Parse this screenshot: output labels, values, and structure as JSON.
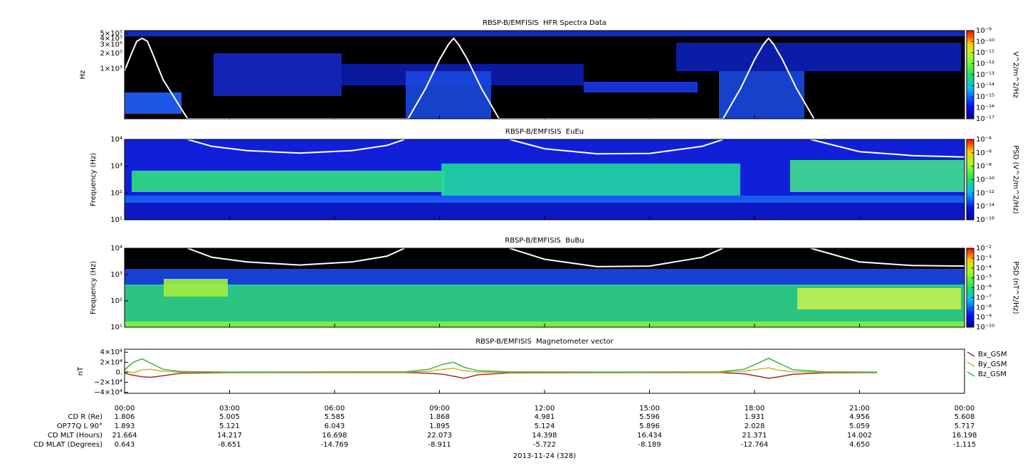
{
  "chart_data": [
    {
      "type": "spectrogram",
      "title": "RBSP-B/EMFISIS  HFR Spectra Data",
      "ylabel": "Hz",
      "log": true,
      "ylim": [
        10000,
        570000
      ],
      "yticks": [
        {
          "value": 500000,
          "label": "5×10⁵"
        },
        {
          "value": 400000,
          "label": "4×10⁵"
        },
        {
          "value": 300000,
          "label": "3×10⁵"
        },
        {
          "value": 200000,
          "label": "2×10⁵"
        },
        {
          "value": 100000,
          "label": "1×10⁵"
        }
      ],
      "colorbar": {
        "label": "V^2/m^2/Hz",
        "lim": [
          1e-17,
          1e-09
        ],
        "ticks": [
          {
            "value": 1e-09,
            "label": "10⁻⁹"
          },
          {
            "value": 1e-10,
            "label": "10⁻¹⁰"
          },
          {
            "value": 1e-11,
            "label": "10⁻¹¹"
          },
          {
            "value": 1e-12,
            "label": "10⁻¹²"
          },
          {
            "value": 1e-13,
            "label": "10⁻¹³"
          },
          {
            "value": 1e-14,
            "label": "10⁻¹⁴"
          },
          {
            "value": 1e-15,
            "label": "10⁻¹⁵"
          },
          {
            "value": 1e-16,
            "label": "10⁻¹⁶"
          },
          {
            "value": 1e-17,
            "label": "10⁻¹⁷"
          }
        ]
      },
      "series": [
        {
          "color": "#ffffff",
          "x": [
            0,
            0.2,
            0.35,
            0.5,
            0.65,
            0.8,
            1.1,
            1.8,
            8.1,
            8.6,
            9.0,
            9.25,
            9.4,
            9.55,
            9.8,
            10.2,
            10.7,
            17.1,
            17.6,
            18.0,
            18.25,
            18.4,
            18.55,
            18.8,
            19.2,
            19.7
          ],
          "values": [
            90000,
            200000,
            350000,
            400000,
            350000,
            200000,
            60000,
            10000,
            10000,
            40000,
            150000,
            300000,
            400000,
            300000,
            150000,
            40000,
            10000,
            10000,
            40000,
            150000,
            300000,
            400000,
            300000,
            150000,
            40000,
            10000
          ]
        }
      ]
    },
    {
      "type": "spectrogram",
      "title": "RBSP-B/EMFISIS  EuEu",
      "ylabel": "Frequency (Hz)",
      "log": true,
      "ylim": [
        10,
        10000
      ],
      "yticks": [
        {
          "value": 10,
          "label": "10¹"
        },
        {
          "value": 100,
          "label": "10²"
        },
        {
          "value": 1000,
          "label": "10³"
        },
        {
          "value": 10000,
          "label": "10⁴"
        }
      ],
      "colorbar": {
        "label": "PSD (V^2/m^2/Hz)",
        "lim": [
          1e-16,
          0.0001
        ],
        "ticks": [
          {
            "value": 0.0001,
            "label": "10⁻⁴"
          },
          {
            "value": 1e-06,
            "label": "10⁻⁶"
          },
          {
            "value": 1e-08,
            "label": "10⁻⁸"
          },
          {
            "value": 1e-10,
            "label": "10⁻¹⁰"
          },
          {
            "value": 1e-12,
            "label": "10⁻¹²"
          },
          {
            "value": 1e-14,
            "label": "10⁻¹⁴"
          },
          {
            "value": 1e-16,
            "label": "10⁻¹⁶"
          }
        ]
      },
      "series": [
        {
          "color": "#ffffff",
          "x": [
            1.8,
            2.5,
            3.5,
            5,
            6.5,
            7.5,
            8.0,
            9,
            11.0,
            12,
            13.5,
            15,
            16.5,
            17.1,
            18,
            19.6,
            21,
            22.5,
            24
          ],
          "values": [
            10000,
            5500,
            3800,
            3100,
            3800,
            6000,
            10000,
            null,
            10000,
            4500,
            2900,
            3000,
            5500,
            10000,
            null,
            10000,
            3500,
            2500,
            2200
          ]
        }
      ]
    },
    {
      "type": "spectrogram",
      "title": "RBSP-B/EMFISIS  BuBu",
      "ylabel": "Frequency (Hz)",
      "log": true,
      "ylim": [
        10,
        10000
      ],
      "yticks": [
        {
          "value": 10,
          "label": "10¹"
        },
        {
          "value": 100,
          "label": "10²"
        },
        {
          "value": 1000,
          "label": "10³"
        },
        {
          "value": 10000,
          "label": "10⁴"
        }
      ],
      "colorbar": {
        "label": "PSD (nT^2/Hz)",
        "lim": [
          1e-10,
          0.01
        ],
        "ticks": [
          {
            "value": 0.01,
            "label": "10⁻²"
          },
          {
            "value": 0.001,
            "label": "10⁻³"
          },
          {
            "value": 0.0001,
            "label": "10⁻⁴"
          },
          {
            "value": 1e-05,
            "label": "10⁻⁵"
          },
          {
            "value": 1e-06,
            "label": "10⁻⁶"
          },
          {
            "value": 1e-07,
            "label": "10⁻⁷"
          },
          {
            "value": 1e-08,
            "label": "10⁻⁸"
          },
          {
            "value": 1e-09,
            "label": "10⁻⁹"
          },
          {
            "value": 1e-10,
            "label": "10⁻¹⁰"
          }
        ]
      },
      "series": [
        {
          "color": "#ffffff",
          "x": [
            1.8,
            2.5,
            3.5,
            5,
            6.5,
            7.5,
            8.0,
            9,
            11.0,
            12,
            13.5,
            15,
            16.5,
            17.1,
            18,
            19.6,
            21,
            22.5,
            24
          ],
          "values": [
            10000,
            4500,
            3000,
            2300,
            3000,
            5000,
            10000,
            null,
            10000,
            3800,
            2000,
            2100,
            4500,
            10000,
            null,
            10000,
            3000,
            2200,
            2100
          ]
        }
      ]
    },
    {
      "type": "line",
      "title": "RBSP-B/EMFISIS  Magnetometer vector",
      "ylabel": "nT",
      "log": false,
      "ylim": [
        -42000,
        46000
      ],
      "yticks": [
        {
          "value": 40000,
          "label": "4×10⁴"
        },
        {
          "value": 20000,
          "label": "2×10⁴"
        },
        {
          "value": 0,
          "label": "0."
        },
        {
          "value": -20000,
          "label": "−2×10⁴"
        },
        {
          "value": -40000,
          "label": "−4×10⁴"
        }
      ],
      "x": [
        0,
        0.25,
        0.5,
        0.75,
        1.1,
        1.6,
        3,
        8,
        8.7,
        9.1,
        9.4,
        9.7,
        10.1,
        11,
        14,
        17,
        17.7,
        18.1,
        18.4,
        18.7,
        19.1,
        20,
        21.5
      ],
      "series": [
        {
          "name": "Bx_GSM",
          "color": "#a52a2a",
          "values": [
            -2000,
            -6000,
            -9000,
            -10000,
            -7000,
            -2000,
            -500,
            -500,
            -2000,
            -4000,
            -8000,
            -12000,
            -5000,
            -1000,
            -500,
            -500,
            -3000,
            -8000,
            -12000,
            -9000,
            -4000,
            -1000,
            -500
          ]
        },
        {
          "name": "By_GSM",
          "color": "#c8b432",
          "values": [
            3000,
            -1000,
            5000,
            6000,
            2000,
            500,
            200,
            300,
            2000,
            6000,
            8000,
            3000,
            500,
            200,
            200,
            300,
            2000,
            6000,
            9000,
            4000,
            1000,
            300,
            200
          ]
        },
        {
          "name": "Bz_GSM",
          "color": "#3cb43c",
          "values": [
            5000,
            20000,
            27000,
            18000,
            6000,
            1500,
            500,
            1000,
            6000,
            16000,
            20000,
            10000,
            3000,
            800,
            500,
            1000,
            6000,
            18000,
            28000,
            18000,
            5000,
            1000,
            500
          ]
        }
      ]
    }
  ],
  "x_axis": {
    "xlim": [
      0,
      24
    ],
    "xticks": [
      {
        "value": 0,
        "label": "00:00"
      },
      {
        "value": 3,
        "label": "03:00"
      },
      {
        "value": 6,
        "label": "06:00"
      },
      {
        "value": 9,
        "label": "09:00"
      },
      {
        "value": 12,
        "label": "12:00"
      },
      {
        "value": 15,
        "label": "15:00"
      },
      {
        "value": 18,
        "label": "18:00"
      },
      {
        "value": 21,
        "label": "21:00"
      },
      {
        "value": 24,
        "label": "00:00"
      }
    ],
    "ephemeris": [
      {
        "label": "CD R (Re)",
        "values": [
          "1.806",
          "5.005",
          "5.585",
          "1.868",
          "4.981",
          "5.596",
          "1.931",
          "4.956",
          "5.608"
        ]
      },
      {
        "label": "OP77Q L 90°",
        "values": [
          "1.893",
          "5.121",
          "6.043",
          "1.895",
          "5.124",
          "5.896",
          "2.028",
          "5.059",
          "5.717"
        ]
      },
      {
        "label": "CD MLT (Hours)",
        "values": [
          "21.664",
          "14.217",
          "16.698",
          "22.073",
          "14.398",
          "16.434",
          "21.371",
          "14.002",
          "16.198"
        ]
      },
      {
        "label": "CD MLAT (Degrees)",
        "values": [
          "0.643",
          "-8.651",
          "-14.769",
          "-8.911",
          "-5.722",
          "-8.189",
          "-12.764",
          "4.650",
          "-1.115"
        ]
      }
    ],
    "date": "2013-11-24 (328)"
  }
}
